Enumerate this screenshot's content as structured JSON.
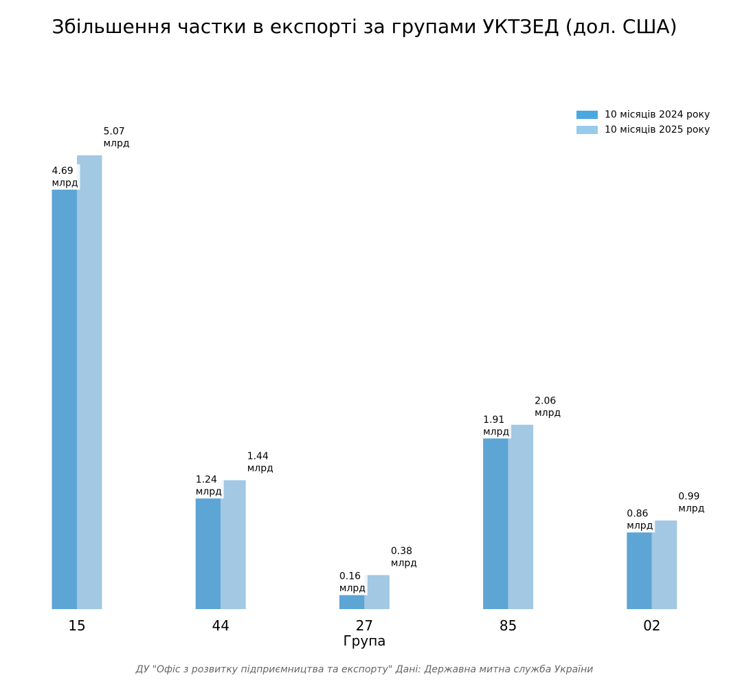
{
  "chart_data": {
    "type": "bar",
    "title": "Збільшення частки в експорті за групами УКТЗЕД (дол. США)",
    "xlabel": "Група",
    "ylabel": "",
    "categories": [
      "15",
      "44",
      "27",
      "85",
      "02"
    ],
    "series": [
      {
        "name": "10 місяців 2024 року",
        "color": "#5da5d5",
        "legend_color": "#4aa7e0",
        "values": [
          4.69,
          1.24,
          0.16,
          1.91,
          0.86
        ],
        "labels": [
          "4.69\nмлрд",
          "1.24\nмлрд",
          "0.16\nмлрд",
          "1.91\nмлрд",
          "0.86\nмлрд"
        ]
      },
      {
        "name": "10 місяців 2025 року",
        "color": "#a2c8e3",
        "legend_color": "#97cbec",
        "values": [
          5.07,
          1.44,
          0.38,
          2.06,
          0.99
        ],
        "labels": [
          "5.07\nмлрд",
          "1.44\nмлрд",
          "0.38\nмлрд",
          "2.06\nмлрд",
          "0.99\nмлрд"
        ]
      }
    ],
    "unit": "млрд",
    "ylim": [
      0,
      5.5
    ],
    "grid": false,
    "legend_position": "top-right",
    "footer": "ДУ \"Офіс з розвитку підприємництва та експорту\" Дані: Державна митна служба України"
  }
}
